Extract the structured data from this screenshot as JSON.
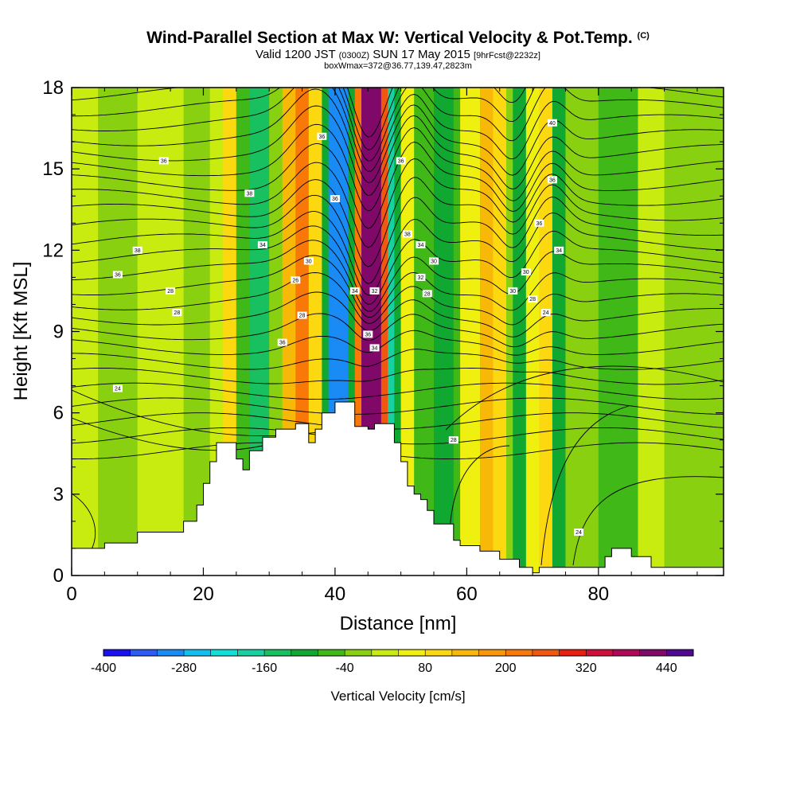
{
  "title": {
    "main": "Wind-Parallel Section at Max W: Vertical Velocity & Pot.Temp.",
    "copyright": "(C)",
    "valid_a": "Valid 1200 JST",
    "valid_zulu": "(0300Z)",
    "valid_b": "SUN 17 May 2015",
    "forecast": "[9hrFcst@2232z]",
    "box": "boxWmax=372@36.77,139.47,2823m"
  },
  "chart_data": {
    "type": "heatmap",
    "xlabel": "Distance [nm]",
    "ylabel": "Height [Kft MSL]",
    "xlim": [
      0,
      99
    ],
    "ylim": [
      0,
      18
    ],
    "x_ticks": [
      0,
      20,
      40,
      60,
      80
    ],
    "y_ticks": [
      0,
      3,
      6,
      9,
      12,
      15,
      18
    ],
    "terrain_profile": [
      [
        0,
        1
      ],
      [
        5,
        1
      ],
      [
        5,
        1.2
      ],
      [
        10,
        1.2
      ],
      [
        10,
        1.6
      ],
      [
        14,
        1.6
      ],
      [
        14,
        1.6
      ],
      [
        17,
        1.6
      ],
      [
        17,
        2
      ],
      [
        19,
        2
      ],
      [
        19,
        2.6
      ],
      [
        20,
        2.6
      ],
      [
        20,
        3.4
      ],
      [
        21,
        3.4
      ],
      [
        21,
        4.2
      ],
      [
        22,
        4.2
      ],
      [
        22,
        4.9
      ],
      [
        25,
        4.9
      ],
      [
        25,
        4.3
      ],
      [
        26,
        4.3
      ],
      [
        26,
        3.9
      ],
      [
        27,
        3.9
      ],
      [
        27,
        4.6
      ],
      [
        29,
        4.6
      ],
      [
        29,
        5.1
      ],
      [
        31,
        5.1
      ],
      [
        31,
        5.4
      ],
      [
        34,
        5.4
      ],
      [
        34,
        5.6
      ],
      [
        36,
        5.6
      ],
      [
        36,
        4.9
      ],
      [
        37,
        4.9
      ],
      [
        37,
        5.4
      ],
      [
        38,
        5.4
      ],
      [
        38,
        6
      ],
      [
        40,
        6
      ],
      [
        40,
        6.4
      ],
      [
        43,
        6.4
      ],
      [
        43,
        5.5
      ],
      [
        45,
        5.5
      ],
      [
        45,
        5.4
      ],
      [
        46,
        5.4
      ],
      [
        46,
        5.6
      ],
      [
        49,
        5.6
      ],
      [
        49,
        4.9
      ],
      [
        50,
        4.9
      ],
      [
        50,
        4.2
      ],
      [
        51,
        4.2
      ],
      [
        51,
        3.3
      ],
      [
        52,
        3.3
      ],
      [
        52,
        3.0
      ],
      [
        53,
        3.0
      ],
      [
        53,
        2.8
      ],
      [
        54,
        2.8
      ],
      [
        54,
        2.4
      ],
      [
        55,
        2.4
      ],
      [
        55,
        1.9
      ],
      [
        58,
        1.9
      ],
      [
        58,
        1.3
      ],
      [
        59,
        1.3
      ],
      [
        59,
        1.1
      ],
      [
        62,
        1.1
      ],
      [
        62,
        0.9
      ],
      [
        65,
        0.9
      ],
      [
        65,
        0.6
      ],
      [
        68,
        0.6
      ],
      [
        68,
        0.3
      ],
      [
        70,
        0.3
      ],
      [
        70,
        0.1
      ],
      [
        71,
        0.1
      ],
      [
        71,
        0.3
      ],
      [
        81,
        0.3
      ],
      [
        81,
        0.7
      ],
      [
        82,
        0.7
      ],
      [
        82,
        1.0
      ],
      [
        85,
        1.0
      ],
      [
        85,
        0.7
      ],
      [
        88,
        0.7
      ],
      [
        88,
        0.3
      ],
      [
        99,
        0.3
      ]
    ],
    "colorbar": {
      "label": "Vertical Velocity [cm/s]",
      "levels": [
        -400,
        -360,
        -320,
        -280,
        -240,
        -200,
        -160,
        -120,
        -80,
        -40,
        0,
        40,
        80,
        120,
        160,
        200,
        240,
        280,
        320,
        360,
        400,
        440,
        480
      ],
      "tick_labels": [
        "-400",
        "-280",
        "-160",
        "-40",
        "80",
        "200",
        "320",
        "440"
      ],
      "colors": [
        "#1a10f0",
        "#2c5cf5",
        "#1a8af5",
        "#12c0f0",
        "#10e0d8",
        "#18d0a0",
        "#18c060",
        "#10a830",
        "#40b818",
        "#88d010",
        "#c8ec10",
        "#f0f010",
        "#fcd810",
        "#f8b808",
        "#f89808",
        "#f87808",
        "#f05810",
        "#e82010",
        "#d0103c",
        "#b00858",
        "#800868",
        "#500890"
      ]
    },
    "wind_columns": [
      {
        "x0": 0,
        "x1": 4,
        "value": 0
      },
      {
        "x0": 4,
        "x1": 10,
        "value": -20
      },
      {
        "x0": 10,
        "x1": 17,
        "value": 10
      },
      {
        "x0": 17,
        "x1": 21,
        "value": -20
      },
      {
        "x0": 21,
        "x1": 23,
        "value": 30
      },
      {
        "x0": 23,
        "x1": 25,
        "value": 90
      },
      {
        "x0": 25,
        "x1": 27,
        "value": -60
      },
      {
        "x0": 27,
        "x1": 30,
        "value": -150
      },
      {
        "x0": 30,
        "x1": 32,
        "value": -40
      },
      {
        "x0": 32,
        "x1": 34,
        "value": 130
      },
      {
        "x0": 34,
        "x1": 36,
        "value": 230
      },
      {
        "x0": 36,
        "x1": 38,
        "value": 80
      },
      {
        "x0": 38,
        "x1": 39,
        "value": -120
      },
      {
        "x0": 39,
        "x1": 42,
        "value": -300
      },
      {
        "x0": 42,
        "x1": 43,
        "value": -120
      },
      {
        "x0": 43,
        "x1": 44,
        "value": 200
      },
      {
        "x0": 44,
        "x1": 47,
        "value": 420
      },
      {
        "x0": 47,
        "x1": 48,
        "value": 260
      },
      {
        "x0": 48,
        "x1": 49,
        "value": -190
      },
      {
        "x0": 49,
        "x1": 50,
        "value": -90
      },
      {
        "x0": 50,
        "x1": 52,
        "value": 40
      },
      {
        "x0": 52,
        "x1": 55,
        "value": -60
      },
      {
        "x0": 55,
        "x1": 58,
        "value": -100
      },
      {
        "x0": 58,
        "x1": 59,
        "value": -50
      },
      {
        "x0": 59,
        "x1": 62,
        "value": 60
      },
      {
        "x0": 62,
        "x1": 64,
        "value": 150
      },
      {
        "x0": 64,
        "x1": 66,
        "value": 100
      },
      {
        "x0": 66,
        "x1": 67,
        "value": -40
      },
      {
        "x0": 67,
        "x1": 69,
        "value": -120
      },
      {
        "x0": 69,
        "x1": 71,
        "value": 40
      },
      {
        "x0": 71,
        "x1": 73,
        "value": 80
      },
      {
        "x0": 73,
        "x1": 75,
        "value": -100
      },
      {
        "x0": 75,
        "x1": 80,
        "value": -20
      },
      {
        "x0": 80,
        "x1": 86,
        "value": -50
      },
      {
        "x0": 86,
        "x1": 90,
        "value": 0
      },
      {
        "x0": 90,
        "x1": 99,
        "value": -30
      }
    ],
    "isentrope_labels": [
      {
        "x": 14,
        "y": 15.3,
        "text": "36"
      },
      {
        "x": 10,
        "y": 12,
        "text": "38"
      },
      {
        "x": 7,
        "y": 11.1,
        "text": "36"
      },
      {
        "x": 15,
        "y": 10.5,
        "text": "28"
      },
      {
        "x": 16,
        "y": 9.7,
        "text": "28"
      },
      {
        "x": 7,
        "y": 6.9,
        "text": "24"
      },
      {
        "x": 27,
        "y": 14.1,
        "text": "38"
      },
      {
        "x": 29,
        "y": 12.2,
        "text": "34"
      },
      {
        "x": 38,
        "y": 16.2,
        "text": "36"
      },
      {
        "x": 40,
        "y": 13.9,
        "text": "36"
      },
      {
        "x": 36,
        "y": 11.6,
        "text": "30"
      },
      {
        "x": 34,
        "y": 10.9,
        "text": "26"
      },
      {
        "x": 35,
        "y": 9.6,
        "text": "28"
      },
      {
        "x": 32,
        "y": 8.6,
        "text": "36"
      },
      {
        "x": 43,
        "y": 10.5,
        "text": "34"
      },
      {
        "x": 46,
        "y": 10.5,
        "text": "32"
      },
      {
        "x": 45,
        "y": 8.9,
        "text": "36"
      },
      {
        "x": 46,
        "y": 8.4,
        "text": "34"
      },
      {
        "x": 50,
        "y": 15.3,
        "text": "36"
      },
      {
        "x": 51,
        "y": 12.6,
        "text": "38"
      },
      {
        "x": 53,
        "y": 12.2,
        "text": "34"
      },
      {
        "x": 55,
        "y": 11.6,
        "text": "30"
      },
      {
        "x": 53,
        "y": 11.0,
        "text": "32"
      },
      {
        "x": 54,
        "y": 10.4,
        "text": "28"
      },
      {
        "x": 73,
        "y": 16.7,
        "text": "40"
      },
      {
        "x": 73,
        "y": 14.6,
        "text": "36"
      },
      {
        "x": 71,
        "y": 13.0,
        "text": "36"
      },
      {
        "x": 74,
        "y": 12.0,
        "text": "34"
      },
      {
        "x": 69,
        "y": 11.2,
        "text": "30"
      },
      {
        "x": 67,
        "y": 10.5,
        "text": "30"
      },
      {
        "x": 70,
        "y": 10.2,
        "text": "28"
      },
      {
        "x": 72,
        "y": 9.7,
        "text": "24"
      },
      {
        "x": 58,
        "y": 5.0,
        "text": "28"
      },
      {
        "x": 77,
        "y": 1.6,
        "text": "24"
      }
    ]
  }
}
